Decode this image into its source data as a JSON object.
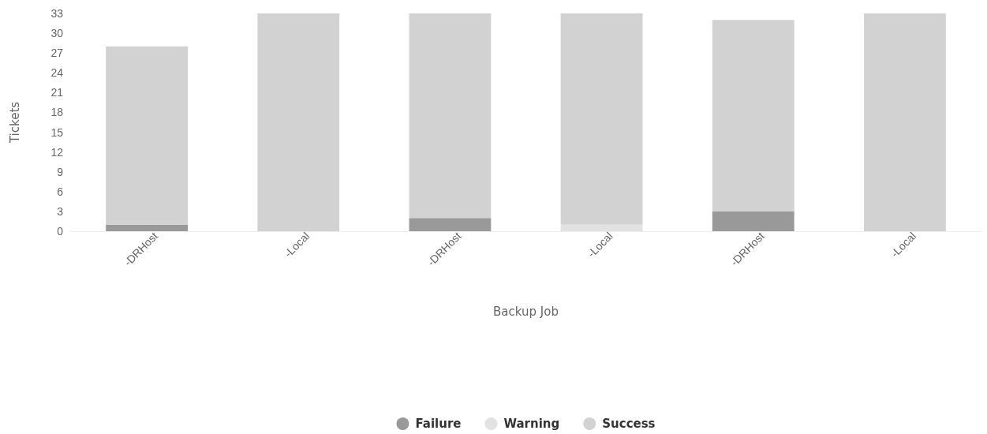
{
  "chart_data": {
    "type": "bar",
    "stacked": true,
    "xlabel": "Backup Job",
    "ylabel": "Tickets",
    "categories": [
      "-DRHost",
      "-Local",
      "-DRHost",
      "-Local",
      "-DRHost",
      "-Local"
    ],
    "series": [
      {
        "name": "Failure",
        "color": "#999999",
        "values": [
          1,
          0,
          2,
          0,
          3,
          0
        ]
      },
      {
        "name": "Warning",
        "color": "#e2e2e2",
        "values": [
          0,
          0,
          0,
          1,
          0,
          0
        ]
      },
      {
        "name": "Success",
        "color": "#d2d2d2",
        "values": [
          27,
          33,
          31,
          32,
          29,
          33
        ]
      }
    ],
    "ylim": [
      0,
      33
    ],
    "yticks": [
      0,
      3,
      6,
      9,
      12,
      15,
      18,
      21,
      24,
      27,
      30,
      33
    ],
    "legend": "bottom",
    "grid": false
  }
}
